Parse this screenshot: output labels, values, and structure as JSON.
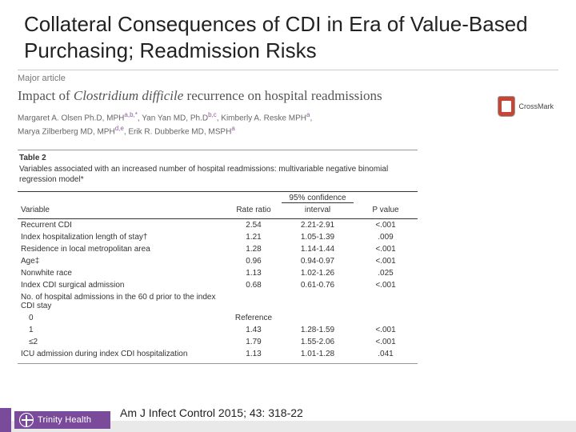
{
  "title": "Collateral Consequences of CDI in Era of Value-Based Purchasing; Readmission Risks",
  "section_label": "Major article",
  "article_title_pre": "Impact of ",
  "article_title_em": "Clostridium difficile",
  "article_title_post": " recurrence on hospital readmissions",
  "authors_html": "Margaret A. Olsen Ph.D, MPH a,b,*, Yan Yan MD, Ph.D b,c, Kimberly A. Reske MPH a, Marya Zilberberg MD, MPH d,e, Erik R. Dubberke MD, MSPH a",
  "crossmark": "CrossMark",
  "table": {
    "label": "Table 2",
    "caption": "Variables associated with an increased number of hospital readmissions: multivariable negative binomial regression model*",
    "col_variable": "Variable",
    "col_rate": "Rate ratio",
    "col_ci_top": "95% confidence",
    "col_ci": "interval",
    "col_p": "P value",
    "rows": [
      {
        "v": "Recurrent CDI",
        "r": "2.54",
        "ci": "2.21-2.91",
        "p": "<.001"
      },
      {
        "v": "Index hospitalization length of stay†",
        "r": "1.21",
        "ci": "1.05-1.39",
        "p": ".009"
      },
      {
        "v": "Residence in local metropolitan area",
        "r": "1.28",
        "ci": "1.14-1.44",
        "p": "<.001"
      },
      {
        "v": "Age‡",
        "r": "0.96",
        "ci": "0.94-0.97",
        "p": "<.001"
      },
      {
        "v": "Nonwhite race",
        "r": "1.13",
        "ci": "1.02-1.26",
        "p": ".025"
      },
      {
        "v": "Index CDI surgical admission",
        "r": "0.68",
        "ci": "0.61-0.76",
        "p": "<.001"
      },
      {
        "v": "No. of hospital admissions in the 60 d prior to the index CDI stay",
        "r": "",
        "ci": "",
        "p": ""
      },
      {
        "v": "0",
        "r": "Reference",
        "ci": "",
        "p": "",
        "indent": true
      },
      {
        "v": "1",
        "r": "1.43",
        "ci": "1.28-1.59",
        "p": "<.001",
        "indent": true
      },
      {
        "v": "≤2",
        "r": "1.79",
        "ci": "1.55-2.06",
        "p": "<.001",
        "indent": true
      },
      {
        "v": "ICU admission during index CDI hospitalization",
        "r": "1.13",
        "ci": "1.01-1.28",
        "p": ".041"
      }
    ]
  },
  "citation": "Am J Infect Control 2015; 43: 318-22",
  "brand": "Trinity Health",
  "colors": {
    "accent": "#7a4b9a",
    "crossmark": "#c84434"
  }
}
